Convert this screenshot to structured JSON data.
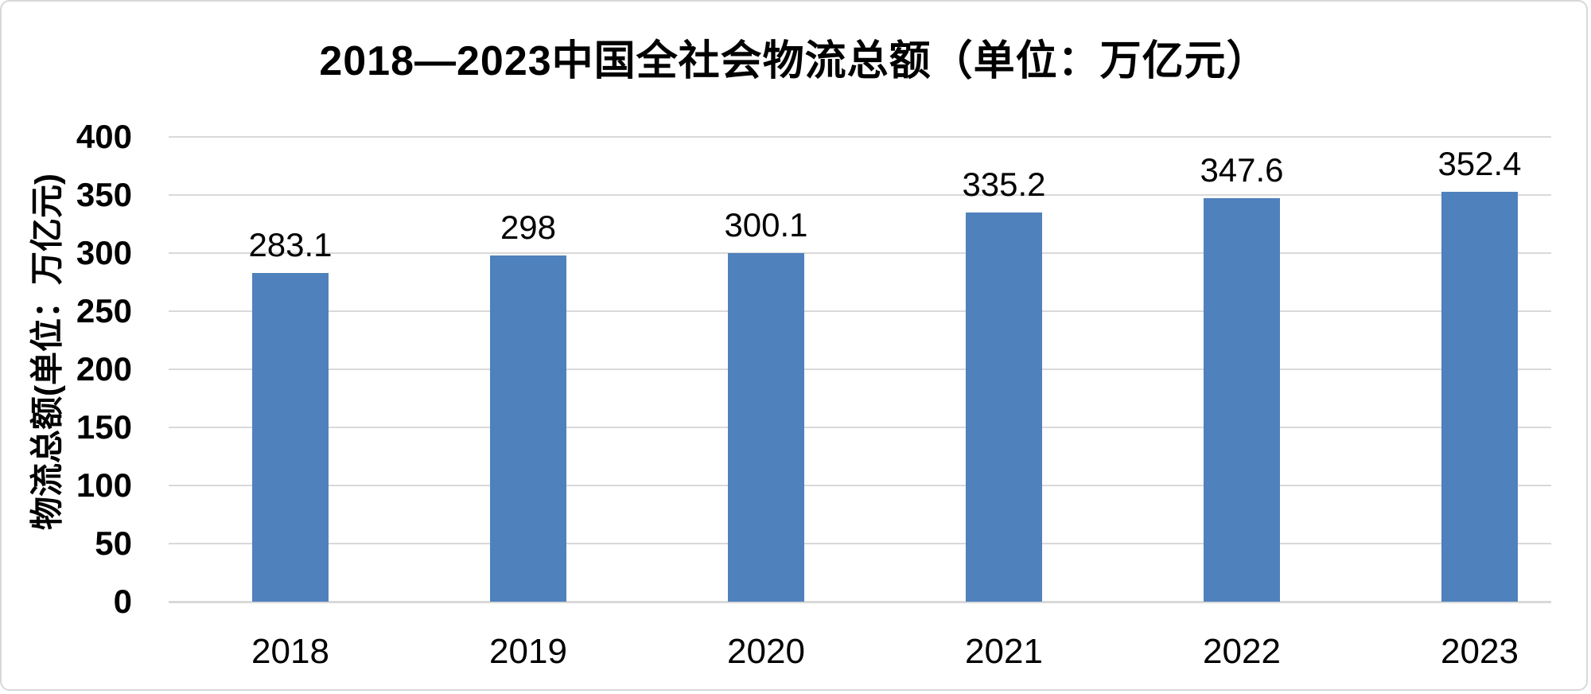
{
  "chart_data": {
    "type": "bar",
    "title": "2018—2023中国全社会物流总额（单位：万亿元）",
    "ylabel": "物流总额(单位：万亿元)",
    "xlabel": "",
    "categories": [
      "2018",
      "2019",
      "2020",
      "2021",
      "2022",
      "2023"
    ],
    "values": [
      283.1,
      298,
      300.1,
      335.2,
      347.6,
      352.4
    ],
    "value_labels": [
      "283.1",
      "298",
      "300.1",
      "335.2",
      "347.6",
      "352.4"
    ],
    "ylim": [
      0,
      400
    ],
    "yticks": [
      0,
      50,
      100,
      150,
      200,
      250,
      300,
      350,
      400
    ],
    "ytick_labels": [
      "0",
      "50",
      "100",
      "150",
      "200",
      "250",
      "300",
      "350",
      "400"
    ],
    "grid": true,
    "legend_position": "none",
    "bar_color": "#4F81BD",
    "gridline_color": "#D9D9D9",
    "text_color": "#000000",
    "background_color": "#FFFFFF"
  }
}
